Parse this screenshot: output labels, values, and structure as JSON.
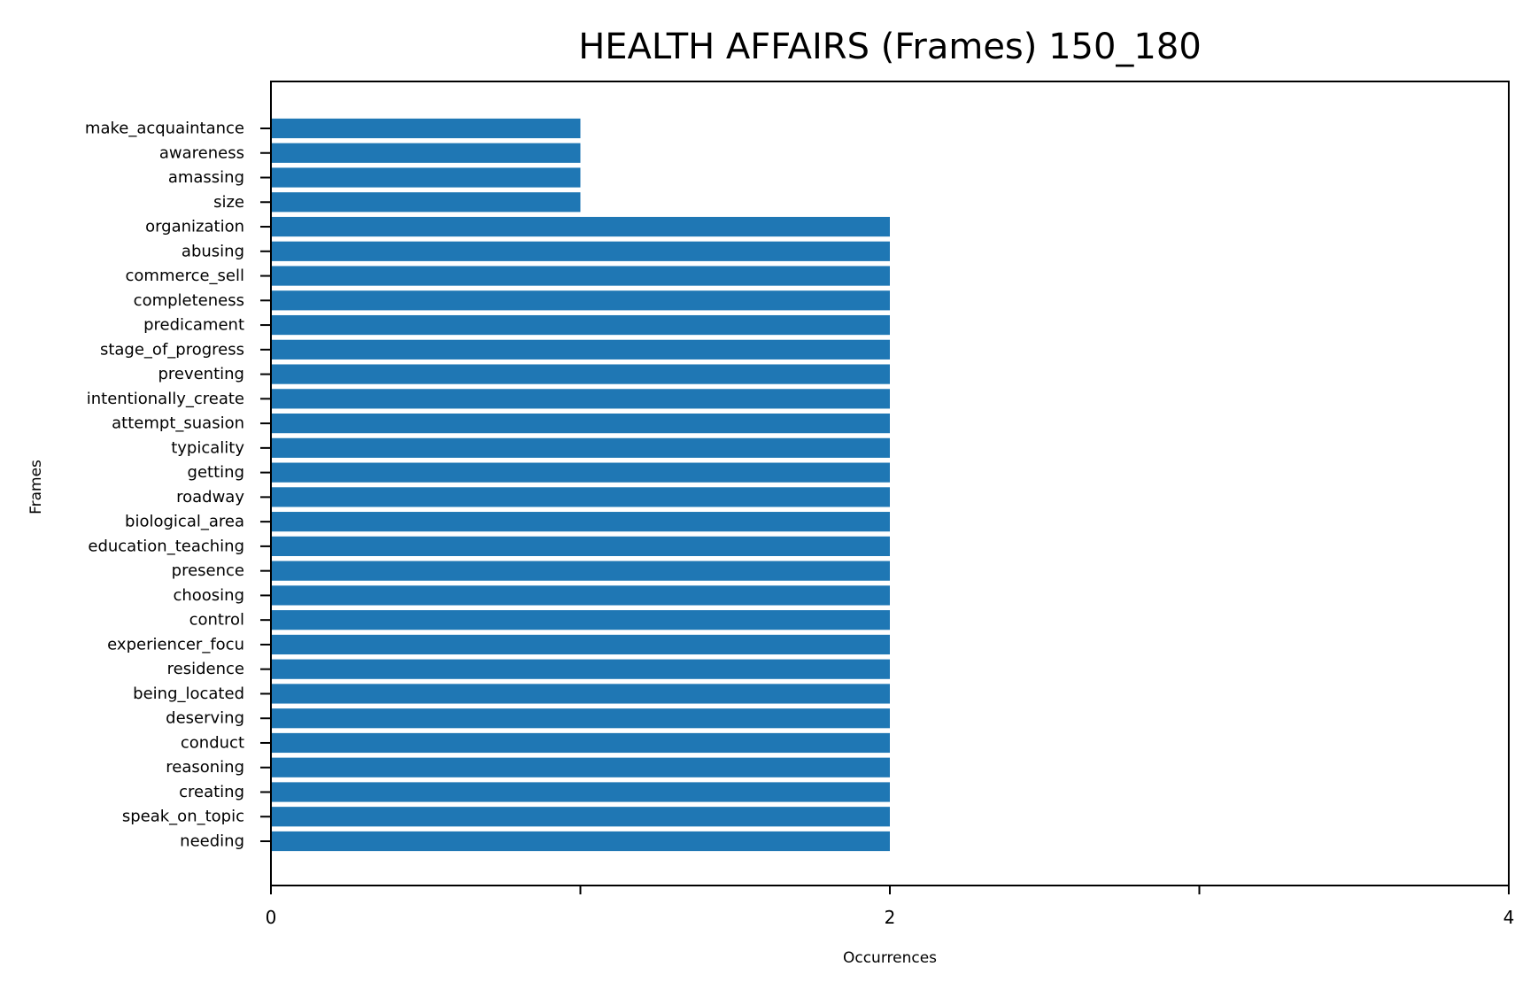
{
  "chart_data": {
    "type": "bar",
    "orientation": "horizontal",
    "title": "HEALTH AFFAIRS (Frames) 150_180",
    "xlabel": "Occurrences",
    "ylabel": "Frames",
    "xlim": [
      0,
      4
    ],
    "x_ticks": [
      0,
      1,
      2,
      3,
      4
    ],
    "x_tick_labels": [
      "0",
      "",
      "2",
      "",
      "4"
    ],
    "grid": false,
    "bar_color": "#1f77b4",
    "categories": [
      "make_acquaintance",
      "awareness",
      "amassing",
      "size",
      "organization",
      "abusing",
      "commerce_sell",
      "completeness",
      "predicament",
      "stage_of_progress",
      "preventing",
      "intentionally_create",
      "attempt_suasion",
      "typicality",
      "getting",
      "roadway",
      "biological_area",
      "education_teaching",
      "presence",
      "choosing",
      "control",
      "experiencer_focu",
      "residence",
      "being_located",
      "deserving",
      "conduct",
      "reasoning",
      "creating",
      "speak_on_topic",
      "needing"
    ],
    "values": [
      1,
      1,
      1,
      1,
      2,
      2,
      2,
      2,
      2,
      2,
      2,
      2,
      2,
      2,
      2,
      2,
      2,
      2,
      2,
      2,
      2,
      2,
      2,
      2,
      2,
      2,
      2,
      2,
      2,
      2
    ]
  }
}
